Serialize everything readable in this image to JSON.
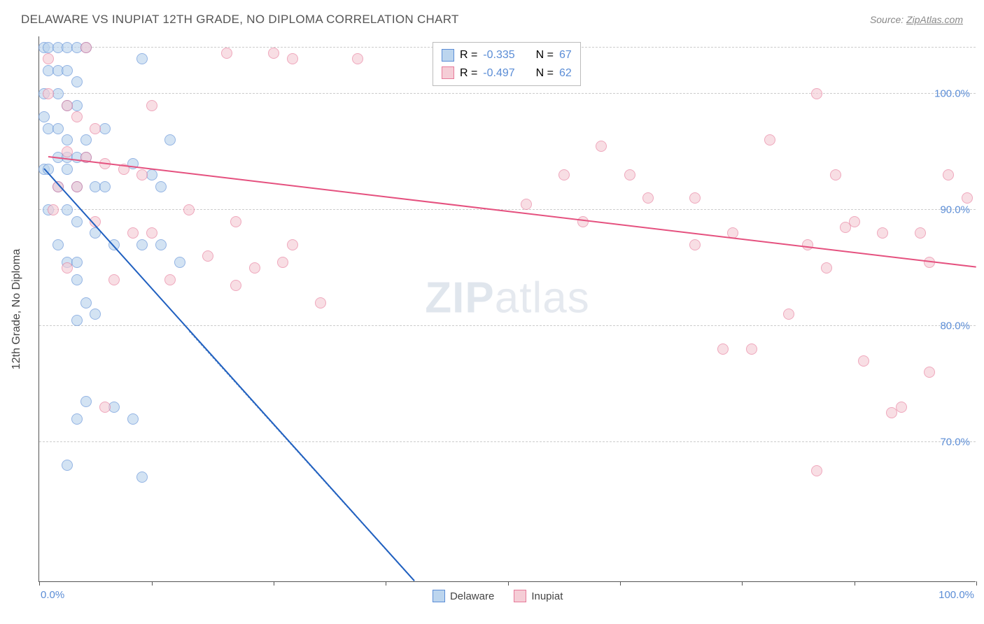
{
  "header": {
    "title": "DELAWARE VS INUPIAT 12TH GRADE, NO DIPLOMA CORRELATION CHART",
    "source_prefix": "Source: ",
    "source_link": "ZipAtlas.com"
  },
  "watermark": {
    "part1": "ZIP",
    "part2": "atlas"
  },
  "chart": {
    "type": "scatter",
    "background_color": "#ffffff",
    "grid_color": "#cccccc",
    "axis_color": "#555555",
    "tick_label_color": "#5b8dd6",
    "tick_fontsize": 15,
    "yaxis_title": "12th Grade, No Diploma",
    "yaxis_title_fontsize": 16,
    "xlim": [
      0,
      100
    ],
    "x_ticks": [
      0,
      12,
      25,
      37,
      50,
      62,
      75,
      87,
      100
    ],
    "x_tick_labels_left": "0.0%",
    "x_tick_labels_right": "100.0%",
    "ylim": [
      58,
      105
    ],
    "y_gridlines": [
      70,
      80,
      90,
      100,
      104
    ],
    "y_tick_labels": [
      "70.0%",
      "80.0%",
      "90.0%",
      "100.0%"
    ],
    "point_radius": 8,
    "series": [
      {
        "name": "Delaware",
        "fill": "#bcd5ee",
        "stroke": "#5b8dd6",
        "trend_color": "#2060c0",
        "trend_dash_color": "#88a8d0",
        "trend_width": 2.5,
        "R": "-0.335",
        "N": "67",
        "trend": {
          "x1": 0.5,
          "y1": 93.5,
          "x2": 40,
          "y2": 58
        },
        "trend_dash": {
          "x1": 16,
          "y1": 79.5,
          "x2": 40,
          "y2": 58
        },
        "points": [
          [
            0.5,
            104
          ],
          [
            1,
            104
          ],
          [
            2,
            104
          ],
          [
            3,
            104
          ],
          [
            4,
            104
          ],
          [
            5,
            104
          ],
          [
            1,
            102
          ],
          [
            2,
            102
          ],
          [
            3,
            102
          ],
          [
            4,
            101
          ],
          [
            0.5,
            100
          ],
          [
            2,
            100
          ],
          [
            3,
            99
          ],
          [
            4,
            99
          ],
          [
            0.5,
            98
          ],
          [
            1,
            97
          ],
          [
            2,
            97
          ],
          [
            3,
            96
          ],
          [
            5,
            96
          ],
          [
            7,
            97
          ],
          [
            10,
            94
          ],
          [
            11,
            103
          ],
          [
            12,
            93
          ],
          [
            13,
            92
          ],
          [
            14,
            96
          ],
          [
            2,
            94.5
          ],
          [
            3,
            94.5
          ],
          [
            4,
            94.5
          ],
          [
            5,
            94.5
          ],
          [
            0.5,
            93.5
          ],
          [
            1,
            93.5
          ],
          [
            3,
            93.5
          ],
          [
            2,
            92
          ],
          [
            4,
            92
          ],
          [
            6,
            92
          ],
          [
            7,
            92
          ],
          [
            1,
            90
          ],
          [
            3,
            90
          ],
          [
            4,
            89
          ],
          [
            6,
            88
          ],
          [
            2,
            87
          ],
          [
            8,
            87
          ],
          [
            11,
            87
          ],
          [
            13,
            87
          ],
          [
            3,
            85.5
          ],
          [
            4,
            85.5
          ],
          [
            15,
            85.5
          ],
          [
            4,
            84
          ],
          [
            5,
            82
          ],
          [
            6,
            81
          ],
          [
            4,
            80.5
          ],
          [
            5,
            73.5
          ],
          [
            8,
            73
          ],
          [
            4,
            72
          ],
          [
            10,
            72
          ],
          [
            3,
            68
          ],
          [
            11,
            67
          ]
        ]
      },
      {
        "name": "Inupiat",
        "fill": "#f5cdd6",
        "stroke": "#e77a9a",
        "trend_color": "#e5517f",
        "trend_width": 2.5,
        "R": "-0.497",
        "N": "62",
        "trend": {
          "x1": 1,
          "y1": 94.5,
          "x2": 100,
          "y2": 85
        },
        "points": [
          [
            1,
            103
          ],
          [
            5,
            104
          ],
          [
            20,
            103.5
          ],
          [
            25,
            103.5
          ],
          [
            27,
            103
          ],
          [
            34,
            103
          ],
          [
            1,
            100
          ],
          [
            3,
            99
          ],
          [
            4,
            98
          ],
          [
            6,
            97
          ],
          [
            12,
            99
          ],
          [
            3,
            95
          ],
          [
            5,
            94.5
          ],
          [
            7,
            94
          ],
          [
            9,
            93.5
          ],
          [
            11,
            93
          ],
          [
            2,
            92
          ],
          [
            4,
            92
          ],
          [
            1.5,
            90
          ],
          [
            6,
            89
          ],
          [
            10,
            88
          ],
          [
            16,
            90
          ],
          [
            12,
            88
          ],
          [
            18,
            86
          ],
          [
            3,
            85
          ],
          [
            8,
            84
          ],
          [
            14,
            84
          ],
          [
            21,
            89
          ],
          [
            21,
            83.5
          ],
          [
            23,
            85
          ],
          [
            26,
            85.5
          ],
          [
            27,
            87
          ],
          [
            30,
            82
          ],
          [
            7,
            73
          ],
          [
            60,
            95.5
          ],
          [
            52,
            90.5
          ],
          [
            56,
            93
          ],
          [
            58,
            89
          ],
          [
            63,
            93
          ],
          [
            65,
            91
          ],
          [
            70,
            91
          ],
          [
            70,
            87
          ],
          [
            73,
            78
          ],
          [
            74,
            88
          ],
          [
            76,
            78
          ],
          [
            78,
            96
          ],
          [
            80,
            81
          ],
          [
            82,
            87
          ],
          [
            83,
            100
          ],
          [
            84,
            85
          ],
          [
            85,
            93
          ],
          [
            86,
            88.5
          ],
          [
            87,
            89
          ],
          [
            88,
            77
          ],
          [
            90,
            88
          ],
          [
            91,
            72.5
          ],
          [
            92,
            73
          ],
          [
            94,
            88
          ],
          [
            95,
            85.5
          ],
          [
            95,
            76
          ],
          [
            97,
            93
          ],
          [
            99,
            91
          ],
          [
            83,
            67.5
          ]
        ]
      }
    ],
    "legend_box": {
      "R_label": "R = ",
      "N_label": "N = "
    },
    "bottom_legend": [
      "Delaware",
      "Inupiat"
    ]
  }
}
